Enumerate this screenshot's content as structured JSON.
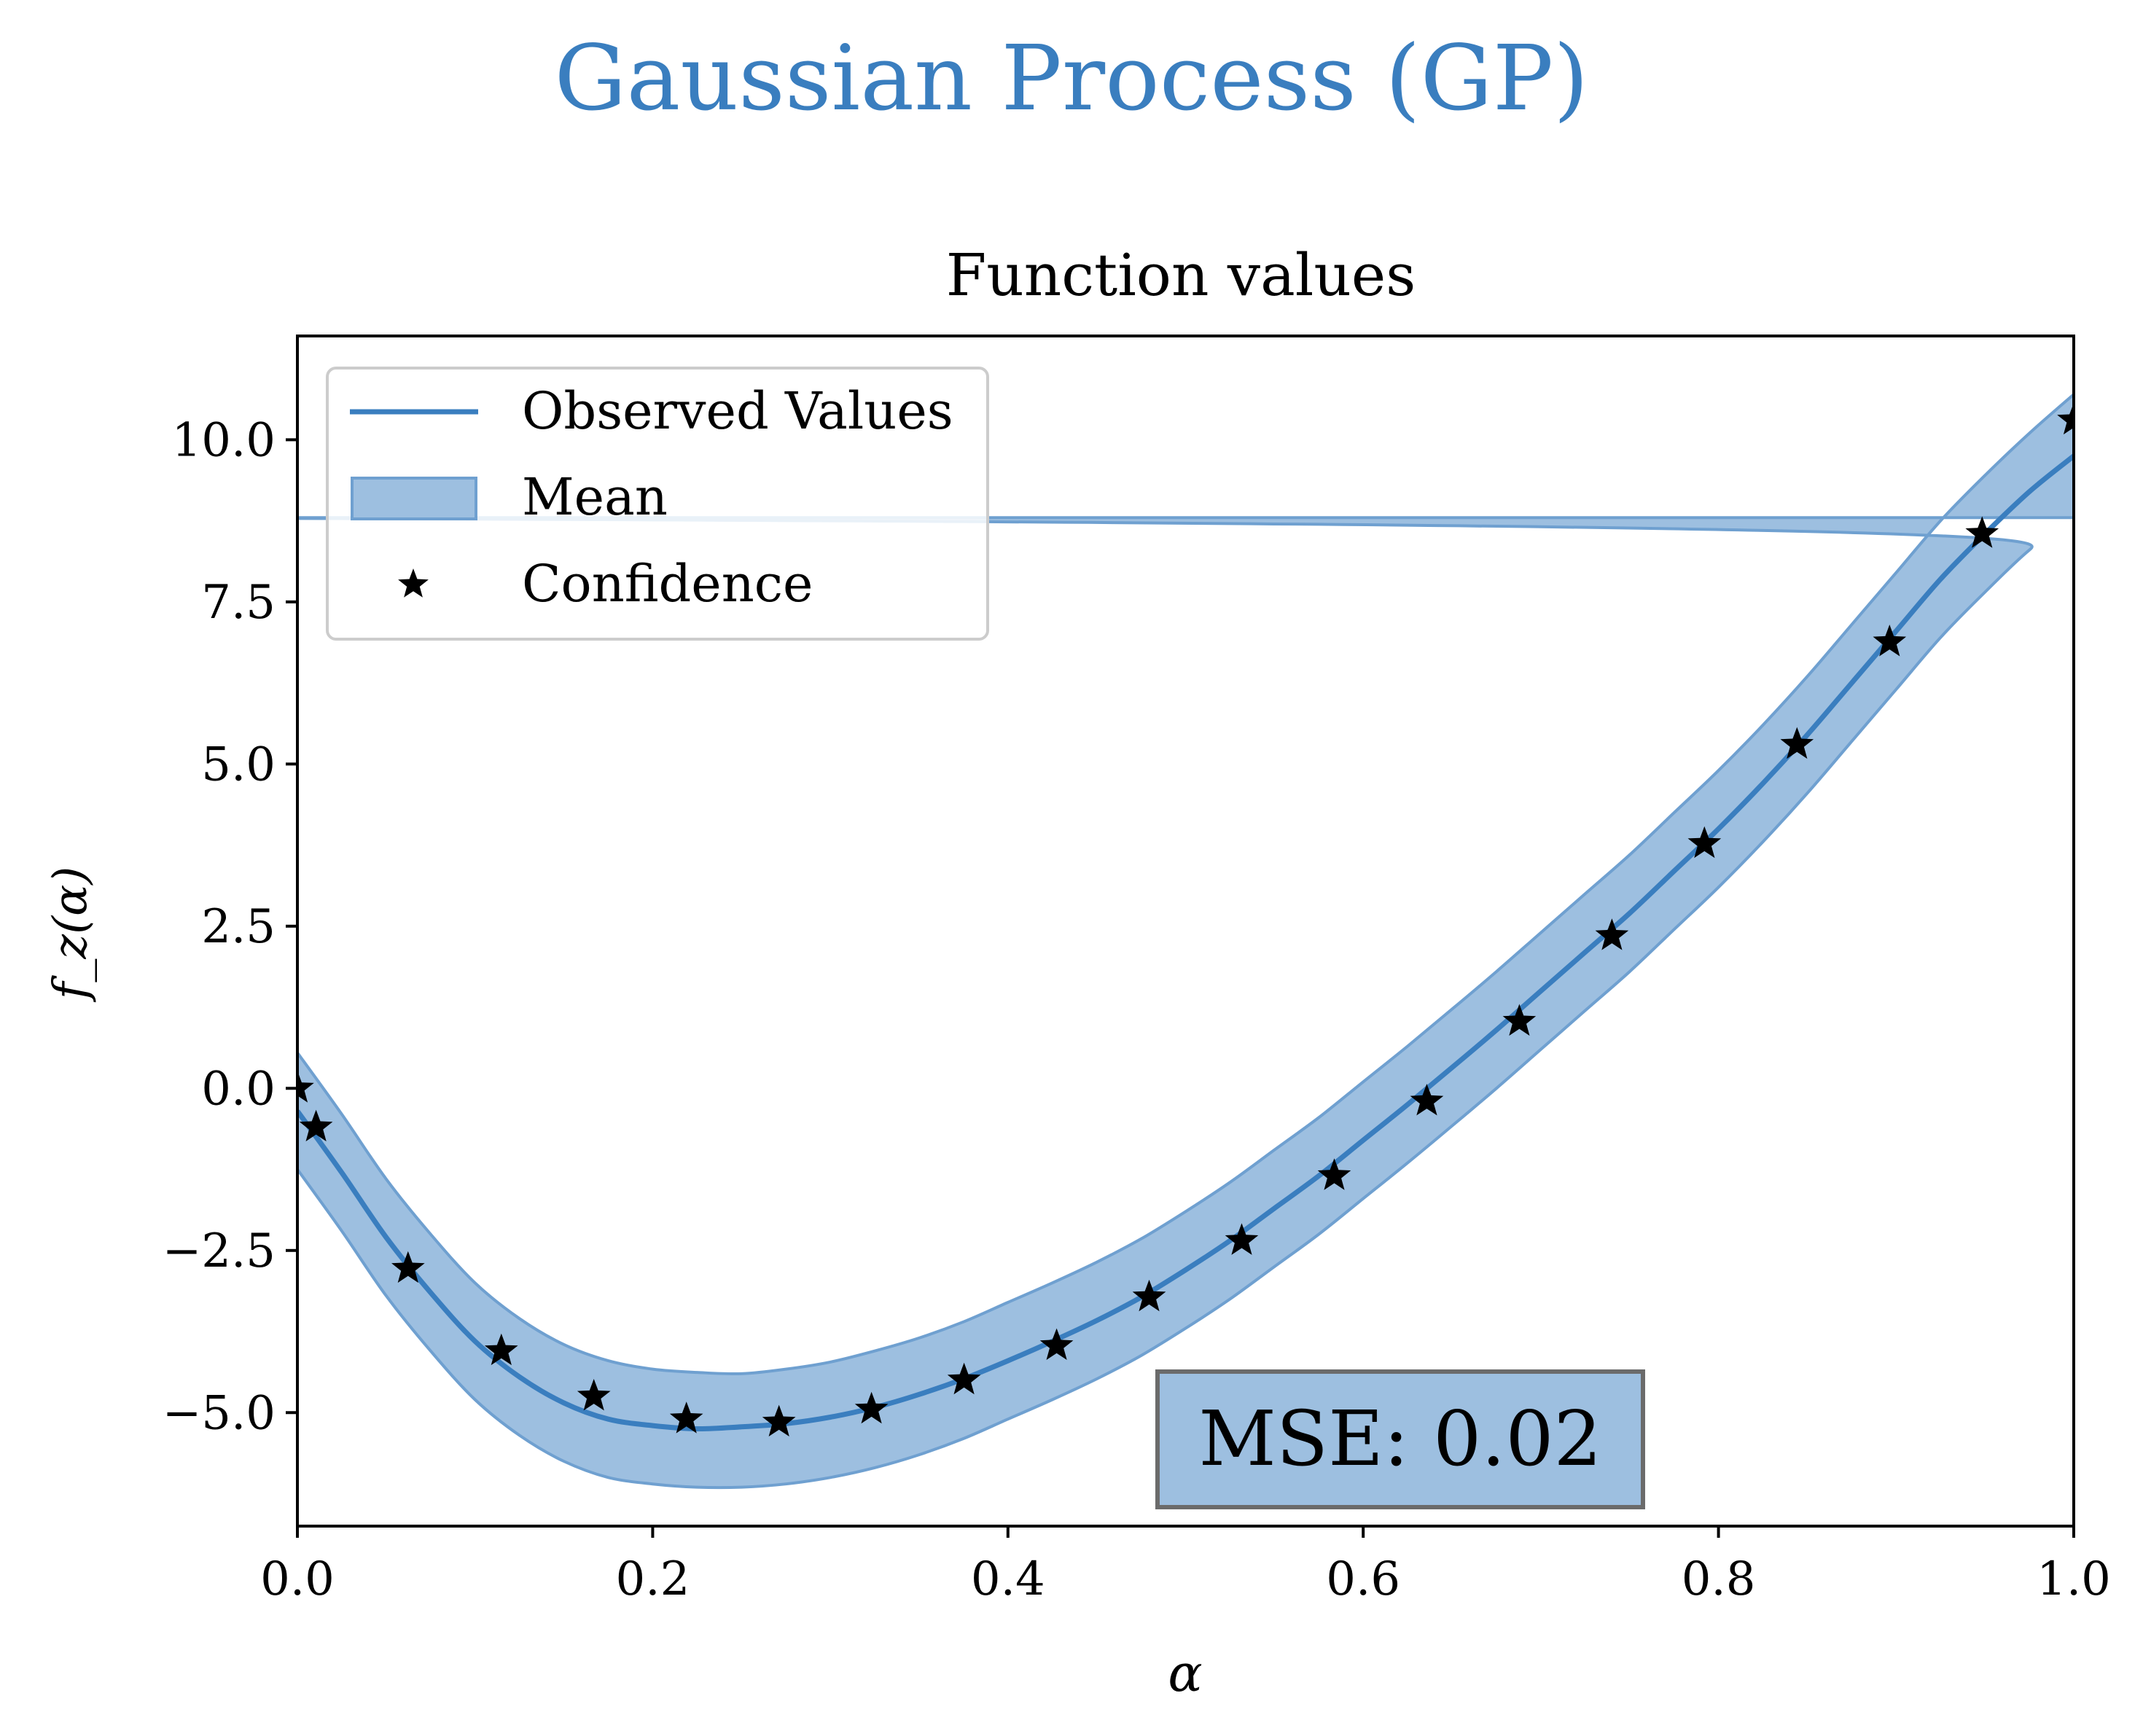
{
  "figure": {
    "suptitle": "Gaussian Process (GP)",
    "suptitle_color": "#3a7ebf"
  },
  "chart_data": {
    "type": "line",
    "title": "Function values",
    "xlabel": "α",
    "ylabel": "f_z(α)",
    "xlim": [
      0.0,
      1.0
    ],
    "ylim": [
      -6.75,
      11.6
    ],
    "x_ticks": [
      0.0,
      0.2,
      0.4,
      0.6,
      0.8,
      1.0
    ],
    "x_tick_labels": [
      "0.0",
      "0.2",
      "0.4",
      "0.6",
      "0.8",
      "1.0"
    ],
    "y_ticks": [
      -5.0,
      -2.5,
      0.0,
      2.5,
      5.0,
      7.5,
      10.0
    ],
    "y_tick_labels": [
      "−5.0",
      "−2.5",
      "0.0",
      "2.5",
      "5.0",
      "7.5",
      "10.0"
    ],
    "grid": false,
    "legend_position": "upper-left",
    "legend": [
      {
        "label": "Observed Values",
        "kind": "line"
      },
      {
        "label": "Mean",
        "kind": "patch"
      },
      {
        "label": "Confidence",
        "kind": "star"
      }
    ],
    "colors": {
      "line": "#3a7ebf",
      "band_fill": "#9dbfe0",
      "band_edge": "#6fa0d0",
      "markers": "#000000",
      "annotation_box": "#9dbfe0",
      "annotation_edge": "#6b6b6b"
    },
    "annotation": {
      "text": "MSE: 0.02",
      "position": "bottom-center"
    },
    "series": [
      {
        "kind": "line",
        "x": [
          0.0,
          0.025,
          0.05,
          0.075,
          0.1,
          0.125,
          0.15,
          0.175,
          0.2,
          0.225,
          0.25,
          0.275,
          0.3,
          0.325,
          0.35,
          0.375,
          0.4,
          0.425,
          0.45,
          0.475,
          0.5,
          0.525,
          0.55,
          0.575,
          0.6,
          0.625,
          0.65,
          0.675,
          0.7,
          0.725,
          0.75,
          0.775,
          0.8,
          0.825,
          0.85,
          0.875,
          0.9,
          0.925,
          0.95,
          0.975,
          1.0
        ],
        "values": [
          -0.35,
          -1.3,
          -2.3,
          -3.15,
          -3.9,
          -4.45,
          -4.85,
          -5.1,
          -5.2,
          -5.25,
          -5.22,
          -5.17,
          -5.07,
          -4.92,
          -4.72,
          -4.48,
          -4.2,
          -3.9,
          -3.58,
          -3.22,
          -2.8,
          -2.35,
          -1.85,
          -1.35,
          -0.8,
          -0.25,
          0.32,
          0.9,
          1.5,
          2.1,
          2.7,
          3.35,
          4.0,
          4.7,
          5.45,
          6.25,
          7.05,
          7.85,
          8.55,
          9.2,
          9.75
        ]
      },
      {
        "kind": "band",
        "x": [
          0.0,
          0.025,
          0.05,
          0.075,
          0.1,
          0.125,
          0.15,
          0.175,
          0.2,
          0.225,
          0.25,
          0.275,
          0.3,
          0.325,
          0.35,
          0.375,
          0.4,
          0.425,
          0.45,
          0.475,
          0.5,
          0.525,
          0.55,
          0.575,
          0.6,
          0.625,
          0.65,
          0.675,
          0.7,
          0.725,
          0.75,
          0.775,
          0.8,
          0.825,
          0.85,
          0.875,
          0.9,
          0.925,
          0.95,
          0.975,
          1.0
        ],
        "lower": [
          -1.25,
          -2.2,
          -3.2,
          -4.05,
          -4.8,
          -5.35,
          -5.75,
          -6.0,
          -6.1,
          -6.15,
          -6.15,
          -6.1,
          -6.0,
          -5.85,
          -5.65,
          -5.4,
          -5.1,
          -4.8,
          -4.48,
          -4.12,
          -3.7,
          -3.25,
          -2.75,
          -2.25,
          -1.7,
          -1.15,
          -0.58,
          0.0,
          0.6,
          1.2,
          1.8,
          2.45,
          3.1,
          3.8,
          4.55,
          5.35,
          6.15,
          6.95,
          7.65,
          8.3,
          8.8
        ],
        "upper": [
          0.55,
          -0.4,
          -1.4,
          -2.25,
          -3.0,
          -3.55,
          -3.95,
          -4.2,
          -4.33,
          -4.38,
          -4.4,
          -4.33,
          -4.22,
          -4.05,
          -3.85,
          -3.6,
          -3.3,
          -3.0,
          -2.68,
          -2.32,
          -1.9,
          -1.45,
          -0.95,
          -0.45,
          0.1,
          0.65,
          1.22,
          1.8,
          2.4,
          3.0,
          3.6,
          4.25,
          4.9,
          5.6,
          6.35,
          7.15,
          7.95,
          8.75,
          9.45,
          10.1,
          10.7
        ]
      },
      {
        "kind": "markers",
        "x": [
          0.0,
          0.0105,
          0.0623,
          0.1148,
          0.1669,
          0.219,
          0.2711,
          0.3232,
          0.3753,
          0.4274,
          0.4795,
          0.5316,
          0.5837,
          0.6358,
          0.6879,
          0.74,
          0.7921,
          0.8442,
          0.8963,
          0.9484,
          1.0
        ],
        "values": [
          0.0,
          -0.6,
          -2.78,
          -4.05,
          -4.75,
          -5.1,
          -5.15,
          -4.95,
          -4.5,
          -3.97,
          -3.22,
          -2.35,
          -1.35,
          -0.2,
          1.03,
          2.35,
          3.77,
          5.3,
          6.88,
          8.55,
          10.3
        ]
      }
    ]
  }
}
